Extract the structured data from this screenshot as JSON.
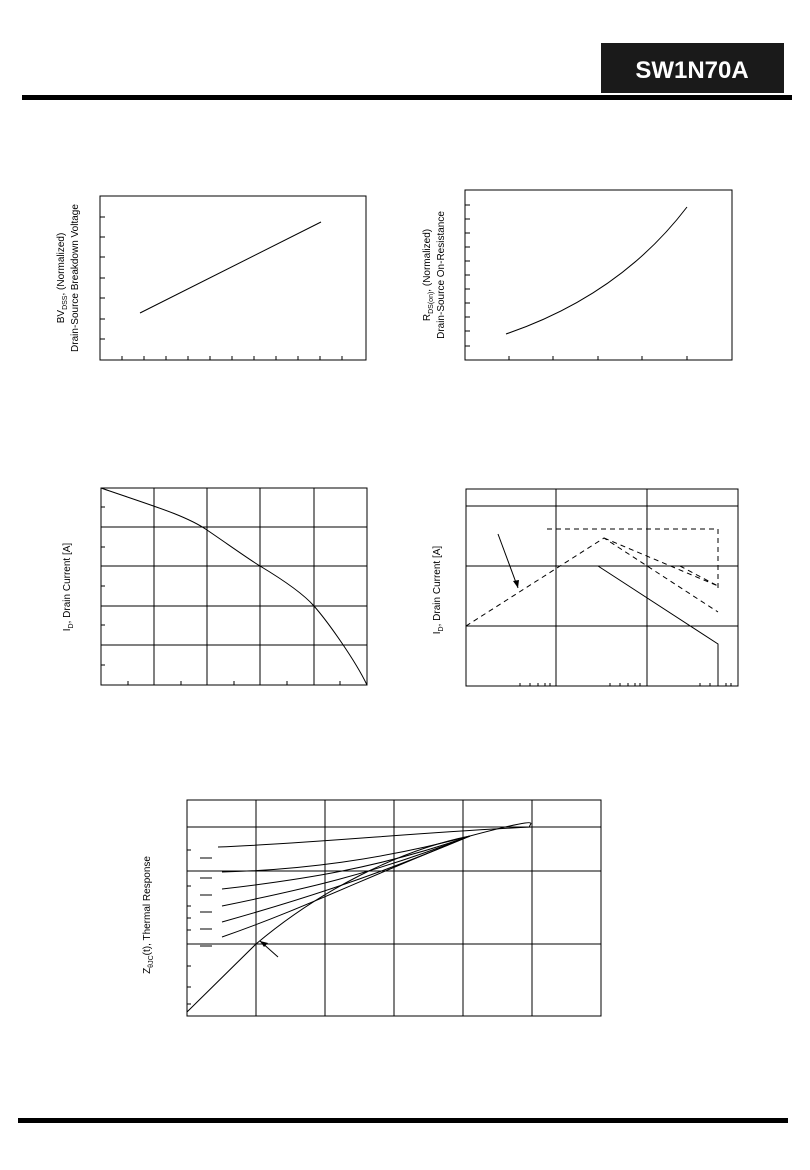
{
  "header": {
    "title": "SW1N70A"
  },
  "figures": [
    {
      "ylabel": {
        "symbol": "BV",
        "sub": "DSS",
        "text": ", (Normalized)",
        "line2": "Drain-Source Breakdown Voltage"
      }
    },
    {
      "ylabel": {
        "symbol": "R",
        "sub": "DS(on)",
        "text": ", (Normalized)",
        "line2": "Drain-Source On-Resistance"
      }
    },
    {
      "ylabel": {
        "symbol": "I",
        "sub": "D",
        "text": ", Drain Current [A]"
      }
    },
    {
      "ylabel": {
        "symbol": "I",
        "sub": "D",
        "text": ", Drain Current [A]"
      }
    },
    {
      "ylabel": {
        "symbol": "Z",
        "sub": "θJC",
        "text": "(t), Thermal Response"
      }
    }
  ]
}
